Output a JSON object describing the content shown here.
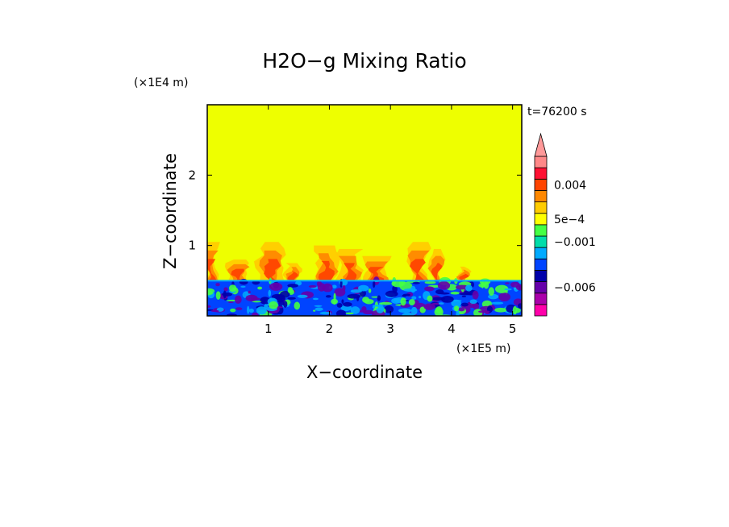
{
  "chart_data": {
    "type": "heatmap",
    "title": "H2O−g Mixing Ratio",
    "xlabel": "X−coordinate",
    "ylabel": "Z−coordinate",
    "x_scale_label": "(×1E5 m)",
    "y_scale_label": "(×1E4 m)",
    "time_label": "t=76200 s",
    "xlim": [
      0,
      5.15
    ],
    "ylim": [
      0,
      3.0
    ],
    "x_ticks": [
      {
        "value": 1,
        "label": "1"
      },
      {
        "value": 2,
        "label": "2"
      },
      {
        "value": 3,
        "label": "3"
      },
      {
        "value": 4,
        "label": "4"
      },
      {
        "value": 5,
        "label": "5"
      }
    ],
    "y_ticks": [
      {
        "value": 1,
        "label": "1"
      },
      {
        "value": 2,
        "label": "2"
      }
    ],
    "background_color": "#eeff00",
    "boundary_height": 0.5,
    "colorbar": {
      "bins": [
        "#ff00aa",
        "#aa00aa",
        "#6600aa",
        "#0000aa",
        "#0044ff",
        "#00aaff",
        "#00ddaa",
        "#44ff44",
        "#ffff00",
        "#ffcc00",
        "#ff8800",
        "#ff4400",
        "#ff1133",
        "#ff8888"
      ],
      "extend_color": "#ff9999",
      "labels": [
        {
          "text": "0.004",
          "bin": 11
        },
        {
          "text": "5e−4",
          "bin": 8
        },
        {
          "text": "−0.001",
          "bin": 6
        },
        {
          "text": "−0.006",
          "bin": 2
        }
      ]
    },
    "regions": [
      {
        "name": "moist-boundary-layer",
        "z_range": [
          0,
          0.5
        ],
        "colors": [
          "#0044ff",
          "#0000aa",
          "#00aaff",
          "#44ff44",
          "#6600aa"
        ]
      },
      {
        "name": "plumes",
        "z_range": [
          0.5,
          1.1
        ],
        "colors": [
          "#ffcc00",
          "#ff8800",
          "#ff4400"
        ]
      }
    ],
    "plumes": [
      {
        "x": 0.05,
        "top": 1.05,
        "w": 0.18
      },
      {
        "x": 0.5,
        "top": 0.8,
        "w": 0.3
      },
      {
        "x": 1.05,
        "top": 1.05,
        "w": 0.35
      },
      {
        "x": 1.4,
        "top": 0.75,
        "w": 0.2
      },
      {
        "x": 1.95,
        "top": 1.0,
        "w": 0.35
      },
      {
        "x": 2.35,
        "top": 0.95,
        "w": 0.3
      },
      {
        "x": 2.75,
        "top": 0.85,
        "w": 0.35
      },
      {
        "x": 3.45,
        "top": 1.05,
        "w": 0.3
      },
      {
        "x": 3.75,
        "top": 0.95,
        "w": 0.2
      },
      {
        "x": 4.2,
        "top": 0.7,
        "w": 0.15
      }
    ]
  }
}
